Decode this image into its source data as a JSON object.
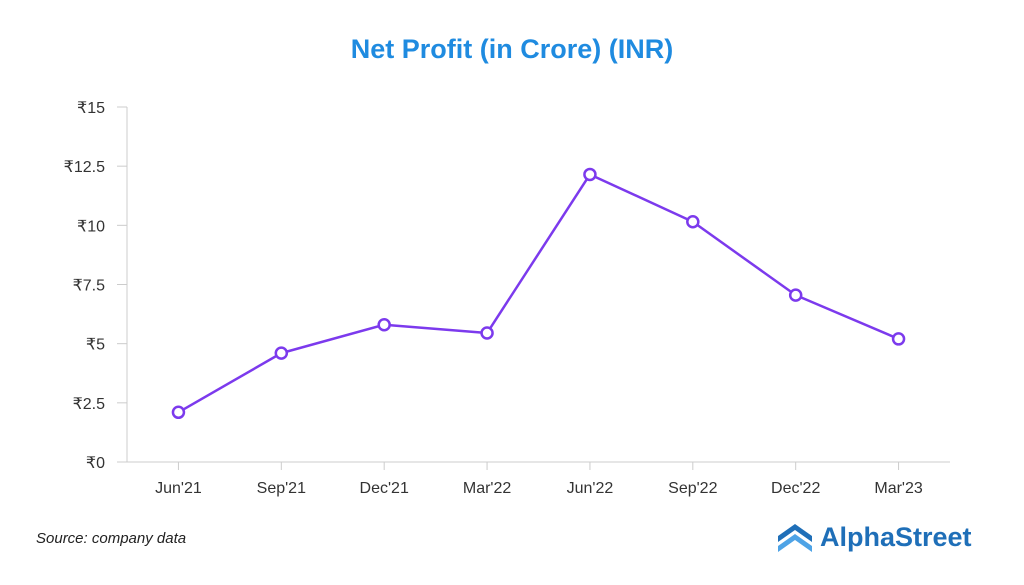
{
  "colors": {
    "title": "#1f8be0",
    "series": "#7c3aed",
    "brand": "#1f6fb8",
    "axis": "#cccccc",
    "text": "#333333"
  },
  "chart_data": {
    "type": "line",
    "title": "Net Profit (in Crore) (INR)",
    "xlabel": "",
    "ylabel": "",
    "categories": [
      "Jun'21",
      "Sep'21",
      "Dec'21",
      "Mar'22",
      "Jun'22",
      "Sep'22",
      "Dec'22",
      "Mar'23"
    ],
    "series": [
      {
        "values": [
          2.1,
          4.6,
          5.8,
          5.45,
          12.15,
          10.15,
          7.05,
          5.2
        ]
      }
    ],
    "ylim": [
      0,
      15
    ],
    "yticks": [
      "₹0",
      "₹2.5",
      "₹5",
      "₹7.5",
      "₹10",
      "₹12.5",
      "₹15"
    ],
    "grid": false,
    "legend": "none"
  },
  "footer": {
    "source": "Source: company data",
    "brand": "AlphaStreet",
    "brand_icon": "alphastreet-logo-icon"
  }
}
